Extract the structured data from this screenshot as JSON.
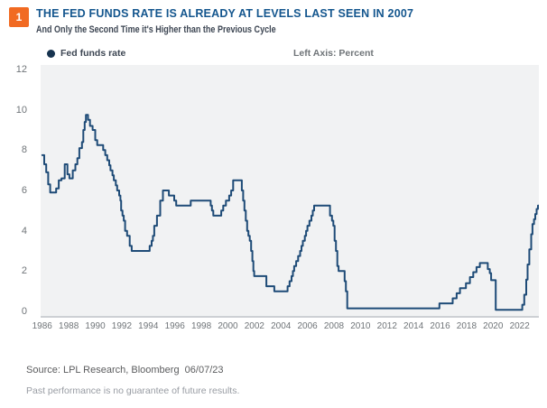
{
  "figure_number": "1",
  "colors": {
    "accent_orange": "#F16A22",
    "title_blue": "#14568E",
    "subtitle_gray": "#3D4653",
    "tick_gray": "#6F7478",
    "plot_bg": "#F1F2F3",
    "axis_line": "#CDD0D4",
    "line_navy": "#1E4B77",
    "dot_navy": "#17334F",
    "source_gray": "#5B5C5E",
    "disclaimer_gray": "#989CA3"
  },
  "footer": {
    "source": "Source: LPL Research, Bloomberg  06/07/23",
    "disclaimer": "Past performance is no guarantee of future results."
  },
  "chart_data": {
    "type": "line",
    "title": "THE FED FUNDS RATE IS ALREADY AT LEVELS LAST SEEN IN 2007",
    "subtitle": "And Only the Second Time it's Higher than the Previous Cycle",
    "legend_label": "Fed funds rate",
    "legend_position": "top-left",
    "axis_note": "Left Axis: Percent",
    "ylabel": "Percent",
    "grid": false,
    "step_interpolation": "after",
    "x_range": [
      1985.88,
      2023.45
    ],
    "y_range": [
      0,
      12
    ],
    "x_end": 2023.45,
    "x_ticks": [
      1986,
      1988,
      1990,
      1992,
      1994,
      1996,
      1998,
      2000,
      2002,
      2004,
      2006,
      2008,
      2010,
      2012,
      2014,
      2016,
      2018,
      2020,
      2022
    ],
    "y_ticks": [
      0,
      2,
      4,
      6,
      8,
      10,
      12
    ],
    "series": [
      {
        "name": "Fed funds rate",
        "points": [
          [
            1986.0,
            7.75
          ],
          [
            1986.15,
            7.3
          ],
          [
            1986.3,
            6.9
          ],
          [
            1986.45,
            6.3
          ],
          [
            1986.6,
            5.9
          ],
          [
            1987.05,
            6.1
          ],
          [
            1987.25,
            6.5
          ],
          [
            1987.45,
            6.6
          ],
          [
            1987.7,
            7.3
          ],
          [
            1987.9,
            6.8
          ],
          [
            1988.05,
            6.6
          ],
          [
            1988.3,
            7.0
          ],
          [
            1988.5,
            7.3
          ],
          [
            1988.65,
            7.6
          ],
          [
            1988.8,
            8.1
          ],
          [
            1989.0,
            8.4
          ],
          [
            1989.1,
            9.0
          ],
          [
            1989.2,
            9.4
          ],
          [
            1989.3,
            9.75
          ],
          [
            1989.45,
            9.5
          ],
          [
            1989.6,
            9.2
          ],
          [
            1989.8,
            9.0
          ],
          [
            1990.0,
            8.5
          ],
          [
            1990.15,
            8.25
          ],
          [
            1990.6,
            8.0
          ],
          [
            1990.75,
            7.75
          ],
          [
            1990.9,
            7.5
          ],
          [
            1991.05,
            7.25
          ],
          [
            1991.15,
            7.0
          ],
          [
            1991.3,
            6.75
          ],
          [
            1991.4,
            6.5
          ],
          [
            1991.55,
            6.25
          ],
          [
            1991.65,
            6.0
          ],
          [
            1991.8,
            5.75
          ],
          [
            1991.9,
            5.5
          ],
          [
            1991.95,
            5.0
          ],
          [
            1992.05,
            4.75
          ],
          [
            1992.15,
            4.5
          ],
          [
            1992.25,
            4.0
          ],
          [
            1992.4,
            3.75
          ],
          [
            1992.6,
            3.25
          ],
          [
            1992.75,
            3.0
          ],
          [
            1994.1,
            3.25
          ],
          [
            1994.25,
            3.5
          ],
          [
            1994.35,
            3.75
          ],
          [
            1994.45,
            4.25
          ],
          [
            1994.65,
            4.75
          ],
          [
            1994.9,
            5.5
          ],
          [
            1995.1,
            6.0
          ],
          [
            1995.55,
            5.75
          ],
          [
            1995.95,
            5.5
          ],
          [
            1996.1,
            5.25
          ],
          [
            1997.2,
            5.5
          ],
          [
            1998.7,
            5.25
          ],
          [
            1998.8,
            5.0
          ],
          [
            1998.9,
            4.75
          ],
          [
            1999.5,
            5.0
          ],
          [
            1999.65,
            5.25
          ],
          [
            1999.85,
            5.5
          ],
          [
            2000.1,
            5.75
          ],
          [
            2000.25,
            6.0
          ],
          [
            2000.4,
            6.5
          ],
          [
            2001.05,
            6.0
          ],
          [
            2001.15,
            5.5
          ],
          [
            2001.25,
            5.0
          ],
          [
            2001.35,
            4.5
          ],
          [
            2001.45,
            4.0
          ],
          [
            2001.55,
            3.75
          ],
          [
            2001.65,
            3.5
          ],
          [
            2001.75,
            3.0
          ],
          [
            2001.85,
            2.5
          ],
          [
            2001.92,
            2.0
          ],
          [
            2001.98,
            1.75
          ],
          [
            2002.9,
            1.25
          ],
          [
            2003.5,
            1.0
          ],
          [
            2004.5,
            1.25
          ],
          [
            2004.65,
            1.5
          ],
          [
            2004.8,
            1.75
          ],
          [
            2004.9,
            2.0
          ],
          [
            2005.0,
            2.25
          ],
          [
            2005.15,
            2.5
          ],
          [
            2005.3,
            2.75
          ],
          [
            2005.45,
            3.0
          ],
          [
            2005.55,
            3.25
          ],
          [
            2005.65,
            3.5
          ],
          [
            2005.8,
            3.75
          ],
          [
            2005.9,
            4.0
          ],
          [
            2006.0,
            4.25
          ],
          [
            2006.15,
            4.5
          ],
          [
            2006.3,
            4.75
          ],
          [
            2006.4,
            5.0
          ],
          [
            2006.5,
            5.25
          ],
          [
            2007.7,
            4.75
          ],
          [
            2007.85,
            4.5
          ],
          [
            2007.95,
            4.25
          ],
          [
            2008.05,
            3.5
          ],
          [
            2008.15,
            3.0
          ],
          [
            2008.25,
            2.25
          ],
          [
            2008.35,
            2.0
          ],
          [
            2008.8,
            1.5
          ],
          [
            2008.9,
            1.0
          ],
          [
            2009.0,
            0.15
          ],
          [
            2015.95,
            0.4
          ],
          [
            2016.95,
            0.65
          ],
          [
            2017.25,
            0.9
          ],
          [
            2017.5,
            1.15
          ],
          [
            2017.95,
            1.4
          ],
          [
            2018.25,
            1.7
          ],
          [
            2018.5,
            1.95
          ],
          [
            2018.75,
            2.2
          ],
          [
            2019.0,
            2.4
          ],
          [
            2019.6,
            2.1
          ],
          [
            2019.75,
            1.9
          ],
          [
            2019.85,
            1.55
          ],
          [
            2020.2,
            0.08
          ],
          [
            2022.2,
            0.33
          ],
          [
            2022.35,
            0.83
          ],
          [
            2022.5,
            1.58
          ],
          [
            2022.6,
            2.33
          ],
          [
            2022.73,
            3.08
          ],
          [
            2022.87,
            3.83
          ],
          [
            2022.97,
            4.33
          ],
          [
            2023.08,
            4.57
          ],
          [
            2023.18,
            4.83
          ],
          [
            2023.28,
            5.08
          ],
          [
            2023.38,
            5.25
          ]
        ]
      }
    ]
  }
}
